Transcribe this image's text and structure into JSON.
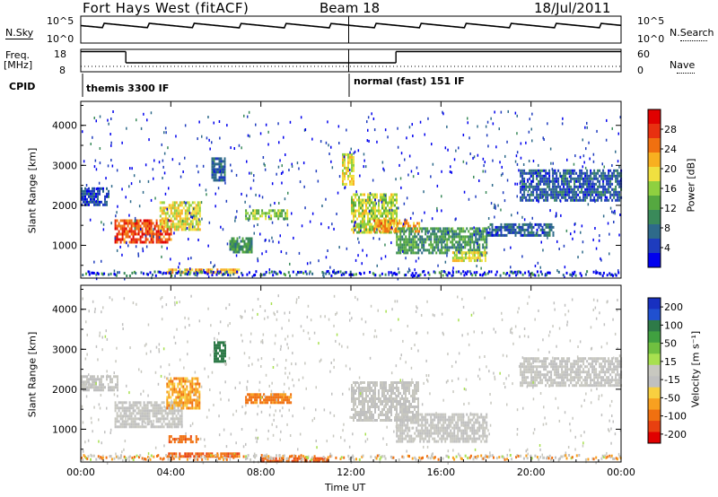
{
  "header": {
    "station": "Fort Hays West (fitACF)",
    "beam": "Beam 18",
    "date": "18/Jul/2011"
  },
  "noise_panel": {
    "left_label": "N.Sky",
    "right_label": "N.Search",
    "left_ticks": [
      "10^5",
      "10^0"
    ],
    "right_ticks": [
      "10^5",
      "10^0"
    ]
  },
  "freq_panel": {
    "left_label_1": "Freq.",
    "left_label_2": "[MHz]",
    "right_label": "Nave",
    "left_ticks": [
      "18",
      "8"
    ],
    "right_ticks": [
      "60",
      "0"
    ],
    "freq_segments": [
      {
        "start": 0.0,
        "end": 2.0,
        "value": 17
      },
      {
        "start": 2.0,
        "end": 14.0,
        "value": 12
      },
      {
        "start": 14.0,
        "end": 24.0,
        "value": 17
      }
    ]
  },
  "cpid_panel": {
    "label": "CPID",
    "mode1": "themis 3300 IF",
    "mode2": "normal (fast) 151 IF"
  },
  "x_axis": {
    "label": "Time UT",
    "ticks": [
      "00:00",
      "04:00",
      "08:00",
      "12:00",
      "16:00",
      "20:00",
      "00:00"
    ]
  },
  "power_panel": {
    "ylabel": "Slant Range [km]",
    "yticks": [
      "1000",
      "2000",
      "3000",
      "4000"
    ],
    "colorbar_label": "Power [dB]",
    "colorbar_ticks": [
      "4",
      "8",
      "12",
      "16",
      "20",
      "24",
      "28"
    ],
    "colors": [
      "#0000ee",
      "#1e3cbe",
      "#2e6a8a",
      "#3a8a5a",
      "#55a840",
      "#8fd040",
      "#f0e040",
      "#f8b020",
      "#f07010",
      "#e83010",
      "#e00000"
    ]
  },
  "velocity_panel": {
    "ylabel": "Slant Range [km]",
    "yticks": [
      "1000",
      "2000",
      "3000",
      "4000"
    ],
    "colorbar_label": "Velocity [m s⁻¹]",
    "colorbar_ticks": [
      "200",
      "100",
      "50",
      "15",
      "-15",
      "-50",
      "-100",
      "-200"
    ],
    "colors": [
      "#1830c0",
      "#2050d0",
      "#2e7a48",
      "#40a040",
      "#70c040",
      "#a8e050",
      "#c8c8c0",
      "#c0c0c0",
      "#f8d040",
      "#f8a020",
      "#f07010",
      "#e84010",
      "#e00000"
    ]
  },
  "chart_data": {
    "type": "heatmap",
    "title": "Fort Hays West (fitACF) Beam 18 18/Jul/2011",
    "xlabel": "Time UT",
    "ylabel": "Slant Range [km]",
    "xlim": [
      0,
      24
    ],
    "ylim": [
      180,
      4600
    ],
    "power_regions": [
      {
        "t0": 0.0,
        "t1": 1.2,
        "r0": 2000,
        "r1": 2450,
        "level": 4
      },
      {
        "t0": 1.5,
        "t1": 4.0,
        "r0": 1050,
        "r1": 1650,
        "level": 26
      },
      {
        "t0": 3.5,
        "t1": 5.3,
        "r0": 1400,
        "r1": 2100,
        "level": 18
      },
      {
        "t0": 5.8,
        "t1": 6.4,
        "r0": 2600,
        "r1": 3200,
        "level": 6
      },
      {
        "t0": 6.6,
        "t1": 7.6,
        "r0": 850,
        "r1": 1200,
        "level": 10
      },
      {
        "t0": 7.3,
        "t1": 9.2,
        "r0": 1650,
        "r1": 1900,
        "level": 14
      },
      {
        "t0": 3.8,
        "t1": 7.0,
        "r0": 300,
        "r1": 420,
        "level": 20
      },
      {
        "t0": 11.6,
        "t1": 12.1,
        "r0": 2500,
        "r1": 3300,
        "level": 18
      },
      {
        "t0": 12.0,
        "t1": 14.0,
        "r0": 1300,
        "r1": 2300,
        "level": 16
      },
      {
        "t0": 13.0,
        "t1": 15.0,
        "r0": 1350,
        "r1": 1650,
        "level": 22
      },
      {
        "t0": 14.0,
        "t1": 18.0,
        "r0": 800,
        "r1": 1450,
        "level": 10
      },
      {
        "t0": 16.5,
        "t1": 18.0,
        "r0": 600,
        "r1": 850,
        "level": 18
      },
      {
        "t0": 18.0,
        "t1": 21.0,
        "r0": 1250,
        "r1": 1550,
        "level": 5
      },
      {
        "t0": 19.5,
        "t1": 24.0,
        "r0": 2100,
        "r1": 2900,
        "level": 5
      }
    ],
    "velocity_regions": [
      {
        "t0": 0.0,
        "t1": 1.6,
        "r0": 1950,
        "r1": 2350,
        "level": 0
      },
      {
        "t0": 1.5,
        "t1": 4.5,
        "r0": 1050,
        "r1": 1700,
        "level": 0
      },
      {
        "t0": 3.8,
        "t1": 5.3,
        "r0": 1500,
        "r1": 2300,
        "level": -40
      },
      {
        "t0": 5.9,
        "t1": 6.4,
        "r0": 2700,
        "r1": 3200,
        "level": 100
      },
      {
        "t0": 7.3,
        "t1": 9.3,
        "r0": 1650,
        "r1": 1900,
        "level": -60
      },
      {
        "t0": 3.9,
        "t1": 5.2,
        "r0": 650,
        "r1": 850,
        "level": -70
      },
      {
        "t0": 3.8,
        "t1": 7.0,
        "r0": 300,
        "r1": 420,
        "level": -80
      },
      {
        "t0": 8.0,
        "t1": 11.0,
        "r0": 200,
        "r1": 300,
        "level": -80
      },
      {
        "t0": 12.0,
        "t1": 15.0,
        "r0": 1200,
        "r1": 2200,
        "level": 0
      },
      {
        "t0": 14.0,
        "t1": 18.0,
        "r0": 700,
        "r1": 1400,
        "level": 0
      },
      {
        "t0": 19.5,
        "t1": 24.0,
        "r0": 2100,
        "r1": 2800,
        "level": 0
      }
    ]
  }
}
